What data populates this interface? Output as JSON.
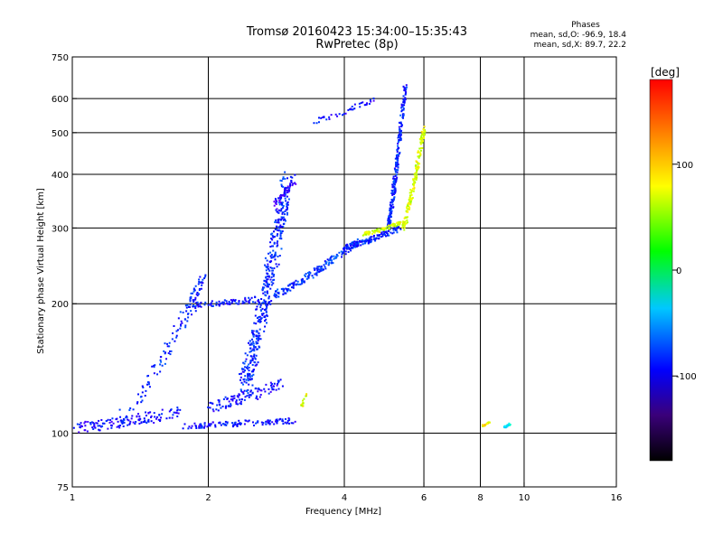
{
  "chart_data": {
    "type": "scatter",
    "title": "Tromsø 20160423 15:34:00–15:35:43",
    "subtitle": "RwPretec (8p)",
    "stats": {
      "heading": "Phases",
      "line_o": "mean, sd,O: -96.9, 18.4",
      "line_x": "mean, sd,X: 89.7, 22.2"
    },
    "xlabel": "Frequency [MHz]",
    "ylabel": "Stationary phase Virtual Height [km]",
    "x_scale": "log",
    "y_scale": "log",
    "xlim": [
      1,
      16
    ],
    "ylim": [
      75,
      750
    ],
    "x_ticks": [
      1,
      2,
      4,
      6,
      8,
      10,
      16
    ],
    "y_ticks": [
      75,
      100,
      200,
      300,
      400,
      500,
      600,
      750
    ],
    "grid_x": [
      2,
      4,
      6,
      8,
      10
    ],
    "grid_y": [
      100,
      200,
      300,
      400,
      500,
      600
    ],
    "colorbar": {
      "label": "[deg]",
      "range": [
        -180,
        180
      ],
      "ticks": [
        100,
        0,
        -100
      ]
    },
    "trace_groups": [
      {
        "f0": 1.0,
        "f1": 1.75,
        "h0": 103,
        "h1": 112,
        "color": -110,
        "n": 140,
        "spread": 0.06
      },
      {
        "f0": 1.75,
        "f1": 3.1,
        "h0": 104,
        "h1": 107,
        "color": -105,
        "n": 120,
        "spread": 0.03
      },
      {
        "f0": 1.3,
        "f1": 1.85,
        "h0": 110,
        "h1": 200,
        "color": -100,
        "n": 90,
        "spread": 0.08
      },
      {
        "f0": 1.78,
        "f1": 2.6,
        "h0": 198,
        "h1": 205,
        "color": -105,
        "n": 80,
        "spread": 0.03
      },
      {
        "f0": 1.8,
        "f1": 1.95,
        "h0": 200,
        "h1": 230,
        "color": -100,
        "n": 40,
        "spread": 0.05
      },
      {
        "f0": 2.0,
        "f1": 2.9,
        "h0": 115,
        "h1": 130,
        "color": -110,
        "n": 110,
        "spread": 0.06
      },
      {
        "f0": 2.4,
        "f1": 3.0,
        "h0": 130,
        "h1": 390,
        "color": -100,
        "n": 420,
        "spread": 0.1
      },
      {
        "f0": 2.8,
        "f1": 3.1,
        "h0": 340,
        "h1": 390,
        "color": -120,
        "n": 50,
        "spread": 0.05
      },
      {
        "f0": 2.8,
        "f1": 4.3,
        "h0": 210,
        "h1": 280,
        "color": -95,
        "n": 180,
        "spread": 0.04
      },
      {
        "f0": 4.0,
        "f1": 5.3,
        "h0": 270,
        "h1": 300,
        "color": -100,
        "n": 130,
        "spread": 0.03
      },
      {
        "f0": 5.0,
        "f1": 5.45,
        "h0": 300,
        "h1": 640,
        "color": -100,
        "n": 240,
        "spread": 0.03
      },
      {
        "f0": 4.4,
        "f1": 5.4,
        "h0": 290,
        "h1": 310,
        "color": 95,
        "n": 90,
        "spread": 0.02
      },
      {
        "f0": 5.4,
        "f1": 6.0,
        "h0": 300,
        "h1": 510,
        "color": 100,
        "n": 170,
        "spread": 0.03
      },
      {
        "f0": 3.4,
        "f1": 4.7,
        "h0": 530,
        "h1": 600,
        "color": -110,
        "n": 40,
        "spread": 0.03
      },
      {
        "f0": 3.2,
        "f1": 3.3,
        "h0": 115,
        "h1": 125,
        "color": 100,
        "n": 14,
        "spread": 0.02
      },
      {
        "f0": 8.1,
        "f1": 8.4,
        "h0": 104,
        "h1": 106,
        "color": 110,
        "n": 22,
        "spread": 0.01
      },
      {
        "f0": 9.0,
        "f1": 9.3,
        "h0": 103,
        "h1": 105,
        "color": -40,
        "n": 20,
        "spread": 0.01
      }
    ]
  }
}
